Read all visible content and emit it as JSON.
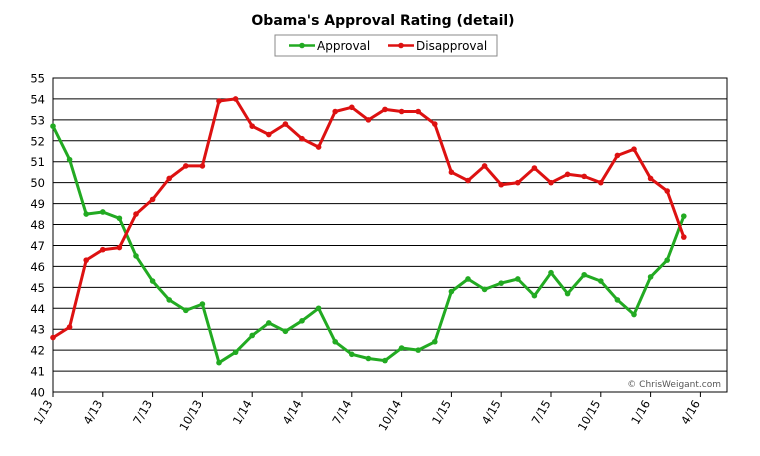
{
  "chart_data": {
    "type": "line",
    "title": "Obama's Approval Rating (detail)",
    "xlabel": "",
    "ylabel": "",
    "ylim": [
      40,
      55
    ],
    "yticks": [
      40,
      41,
      42,
      43,
      44,
      45,
      46,
      47,
      48,
      49,
      50,
      51,
      52,
      53,
      54,
      55
    ],
    "xtick_labels": [
      "1/13",
      "4/13",
      "7/13",
      "10/13",
      "1/14",
      "4/14",
      "7/14",
      "10/14",
      "1/15",
      "4/15",
      "7/15",
      "10/15",
      "1/16",
      "4/16"
    ],
    "grid": "horizontal",
    "legend_position": "top-center",
    "copyright": "© ChrisWeigant.com",
    "series": [
      {
        "name": "Approval",
        "color": "#22aa22",
        "values": [
          52.7,
          51.1,
          48.5,
          48.6,
          48.3,
          46.5,
          45.3,
          44.4,
          43.9,
          44.2,
          41.4,
          41.9,
          42.7,
          43.3,
          42.9,
          43.4,
          44.0,
          42.4,
          41.8,
          41.6,
          41.5,
          42.1,
          42.0,
          42.4,
          44.8,
          45.4,
          44.9,
          45.2,
          45.4,
          44.6,
          45.7,
          44.7,
          45.6,
          45.3,
          44.4,
          43.7,
          45.5,
          46.3,
          48.4
        ]
      },
      {
        "name": "Disapproval",
        "color": "#dd1111",
        "values": [
          42.6,
          43.1,
          46.3,
          46.8,
          46.9,
          48.5,
          49.2,
          50.2,
          50.8,
          50.8,
          53.9,
          54.0,
          52.7,
          52.3,
          52.8,
          52.1,
          51.7,
          53.4,
          53.6,
          53.0,
          53.5,
          53.4,
          53.4,
          52.8,
          50.5,
          50.1,
          50.8,
          49.9,
          50.0,
          50.7,
          50.0,
          50.4,
          50.3,
          50.0,
          51.3,
          51.6,
          50.2,
          49.6,
          47.4
        ]
      }
    ]
  }
}
